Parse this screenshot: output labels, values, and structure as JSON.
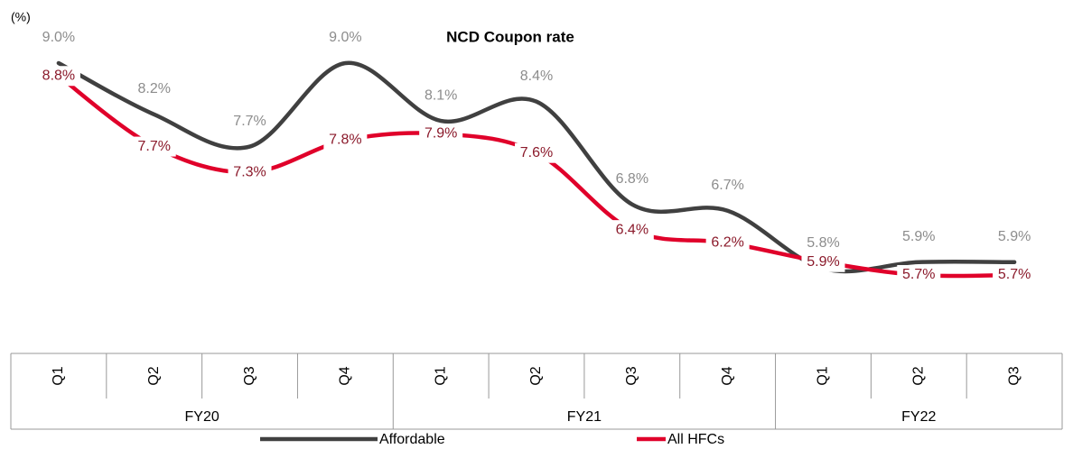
{
  "chart_data": {
    "type": "line",
    "title": "NCD Coupon rate",
    "y_label": "(%)",
    "category_groups": [
      {
        "name": "FY20",
        "categories": [
          "Q1",
          "Q2",
          "Q3",
          "Q4"
        ]
      },
      {
        "name": "FY21",
        "categories": [
          "Q1",
          "Q2",
          "Q3",
          "Q4"
        ]
      },
      {
        "name": "FY22",
        "categories": [
          "Q1",
          "Q2",
          "Q3"
        ]
      }
    ],
    "series": [
      {
        "name": "Affordable",
        "color": "#404040",
        "label_color": "#8c8c8c",
        "values": [
          9.0,
          8.2,
          7.7,
          9.0,
          8.1,
          8.4,
          6.8,
          6.7,
          5.8,
          5.9,
          5.9
        ],
        "value_labels": [
          "9.0%",
          "8.2%",
          "7.7%",
          "9.0%",
          "8.1%",
          "8.4%",
          "6.8%",
          "6.7%",
          "5.8%",
          "5.9%",
          "5.9%"
        ]
      },
      {
        "name": "All HFCs",
        "color": "#e0002a",
        "label_color": "#8b1a2b",
        "values": [
          8.8,
          7.7,
          7.3,
          7.8,
          7.9,
          7.6,
          6.4,
          6.2,
          5.9,
          5.7,
          5.7
        ],
        "value_labels": [
          "8.8%",
          "7.7%",
          "7.3%",
          "7.8%",
          "7.9%",
          "7.6%",
          "6.4%",
          "6.2%",
          "5.9%",
          "5.7%",
          "5.7%"
        ]
      }
    ],
    "smooth": true
  }
}
